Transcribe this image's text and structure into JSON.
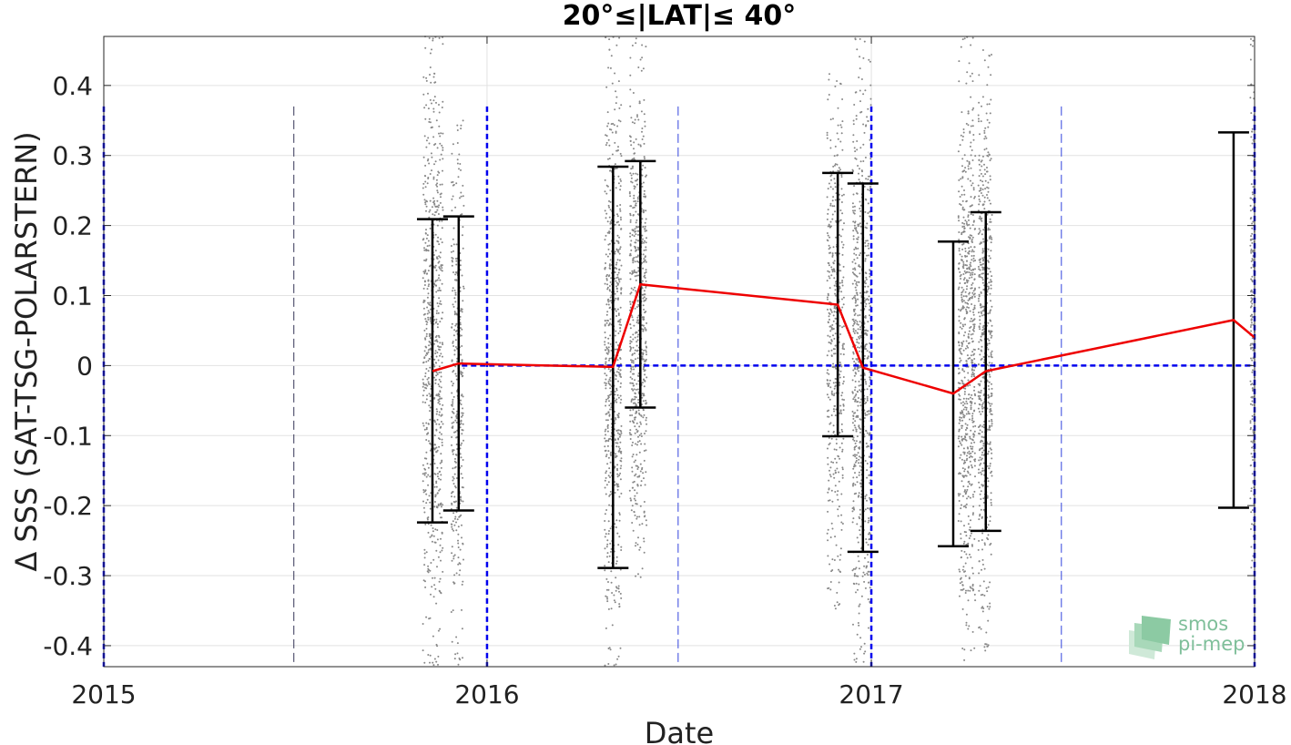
{
  "chart_data": {
    "type": "scatter",
    "title": "20°≤|LAT|≤ 40°",
    "xlabel": "Date",
    "ylabel": "Δ SSS (SAT-TSG-POLARSTERN)",
    "xlim": [
      "2015-01-01",
      "2018-01-01"
    ],
    "ylim": [
      -0.43,
      0.47
    ],
    "x_ticks": [
      "2015",
      "2016",
      "2017",
      "2018"
    ],
    "y_ticks": [
      -0.4,
      -0.3,
      -0.2,
      -0.1,
      0,
      0.1,
      0.2,
      0.3,
      0.4
    ],
    "y_tick_labels": [
      "-0.4",
      "-0.3",
      "-0.2",
      "-0.1",
      "0",
      "0.1",
      "0.2",
      "0.3",
      "0.4"
    ],
    "grid": true,
    "reference_line": {
      "y": 0,
      "style": "dashed",
      "color": "#0000ee"
    },
    "year_boundaries": [
      "2015-01-01",
      "2016-01-01",
      "2017-01-01",
      "2018-01-01"
    ],
    "half_year_lines": [
      "2015-07-01",
      "2016-07-01",
      "2017-07-01"
    ],
    "series": [
      {
        "type": "line",
        "color": "#ee0000",
        "points": [
          {
            "x": "2015-11-10",
            "y": -0.008
          },
          {
            "x": "2015-12-05",
            "y": 0.003
          },
          {
            "x": "2016-04-30",
            "y": -0.002
          },
          {
            "x": "2016-05-26",
            "y": 0.116
          },
          {
            "x": "2016-11-30",
            "y": 0.087
          },
          {
            "x": "2016-12-24",
            "y": -0.003
          },
          {
            "x": "2017-03-20",
            "y": -0.04
          },
          {
            "x": "2017-04-20",
            "y": -0.008
          },
          {
            "x": "2017-12-12",
            "y": 0.065
          },
          {
            "x": "2018-01-01",
            "y": 0.04
          }
        ]
      },
      {
        "type": "errorbar",
        "color": "#000000",
        "bars": [
          {
            "x": "2015-11-10",
            "low": -0.224,
            "high": 0.209
          },
          {
            "x": "2015-12-05",
            "low": -0.207,
            "high": 0.213
          },
          {
            "x": "2016-04-30",
            "low": -0.289,
            "high": 0.284
          },
          {
            "x": "2016-05-26",
            "low": -0.06,
            "high": 0.292
          },
          {
            "x": "2016-11-30",
            "low": -0.101,
            "high": 0.275
          },
          {
            "x": "2016-12-24",
            "low": -0.266,
            "high": 0.26
          },
          {
            "x": "2017-03-20",
            "low": -0.258,
            "high": 0.177
          },
          {
            "x": "2017-04-20",
            "low": -0.236,
            "high": 0.219
          },
          {
            "x": "2017-12-12",
            "low": -0.203,
            "high": 0.333
          }
        ]
      },
      {
        "type": "scatter",
        "color": "#888888",
        "description_clusters": [
          {
            "x_start": "2015-11-01",
            "x_end": "2015-11-20",
            "y_min": -0.43,
            "y_max": 0.47,
            "count": 700
          },
          {
            "x_start": "2015-11-28",
            "x_end": "2015-12-10",
            "y_min": -0.43,
            "y_max": 0.35,
            "count": 350
          },
          {
            "x_start": "2016-04-22",
            "x_end": "2016-05-08",
            "y_min": -0.43,
            "y_max": 0.47,
            "count": 650
          },
          {
            "x_start": "2016-05-16",
            "x_end": "2016-06-01",
            "y_min": -0.31,
            "y_max": 0.47,
            "count": 650
          },
          {
            "x_start": "2016-11-20",
            "x_end": "2016-12-06",
            "y_min": -0.35,
            "y_max": 0.42,
            "count": 450
          },
          {
            "x_start": "2016-12-14",
            "x_end": "2017-01-01",
            "y_min": -0.43,
            "y_max": 0.47,
            "count": 700
          },
          {
            "x_start": "2017-03-25",
            "x_end": "2017-04-10",
            "y_min": -0.43,
            "y_max": 0.47,
            "count": 700
          },
          {
            "x_start": "2017-04-13",
            "x_end": "2017-04-26",
            "y_min": -0.41,
            "y_max": 0.46,
            "count": 600
          },
          {
            "x_start": "2017-12-28",
            "x_end": "2018-01-01",
            "y_min": -0.3,
            "y_max": 0.47,
            "count": 200
          }
        ]
      }
    ]
  },
  "logo": {
    "line1": "smos",
    "line2": "pi-mep"
  }
}
